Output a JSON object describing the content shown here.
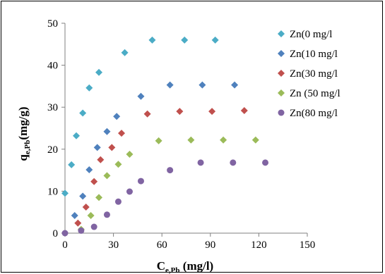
{
  "chart_data": {
    "type": "scatter",
    "title": "",
    "xlabel": "C",
    "xlabel_sub": "e,Pb",
    "xlabel_unit": " (mg/l)",
    "ylabel": "q",
    "ylabel_sub": "e,Pb",
    "ylabel_unit": "(mg/g)",
    "xlim": [
      0,
      150
    ],
    "ylim": [
      0,
      50
    ],
    "xticks": [
      0,
      30,
      60,
      90,
      120,
      150
    ],
    "yticks": [
      0,
      10,
      20,
      30,
      40,
      50
    ],
    "grid": false,
    "legend_position": "right",
    "series": [
      {
        "name": "Zn(0 mg/l",
        "color": "#4BACC6",
        "marker": "diamond",
        "points": [
          [
            0,
            9.5
          ],
          [
            4,
            16.3
          ],
          [
            7,
            23.2
          ],
          [
            11,
            28.6
          ],
          [
            15,
            34.6
          ],
          [
            21,
            38.3
          ],
          [
            37,
            43.0
          ],
          [
            54,
            46.0
          ],
          [
            74,
            46.0
          ],
          [
            93,
            46.0
          ]
        ]
      },
      {
        "name": "Zn(10 mg/l",
        "color": "#4F81BD",
        "marker": "diamond",
        "points": [
          [
            6,
            4.2
          ],
          [
            11,
            8.8
          ],
          [
            15,
            15.1
          ],
          [
            20,
            20.4
          ],
          [
            26,
            24.2
          ],
          [
            32,
            27.8
          ],
          [
            47,
            32.6
          ],
          [
            65,
            35.3
          ],
          [
            85,
            35.3
          ],
          [
            105,
            35.3
          ]
        ]
      },
      {
        "name": "Zn(30 mg/l",
        "color": "#C0504D",
        "marker": "diamond",
        "points": [
          [
            8,
            2.4
          ],
          [
            13,
            6.2
          ],
          [
            18,
            12.3
          ],
          [
            22,
            17.5
          ],
          [
            29,
            20.4
          ],
          [
            35,
            23.8
          ],
          [
            51,
            28.4
          ],
          [
            71,
            29.0
          ],
          [
            91,
            29.0
          ],
          [
            111,
            29.2
          ]
        ]
      },
      {
        "name": "Zn (50 mg/l",
        "color": "#9BBB59",
        "marker": "diamond",
        "points": [
          [
            10,
            0.9
          ],
          [
            16,
            4.2
          ],
          [
            21,
            8.5
          ],
          [
            26,
            13.7
          ],
          [
            33,
            16.4
          ],
          [
            40,
            18.8
          ],
          [
            58,
            22.0
          ],
          [
            78,
            22.2
          ],
          [
            98,
            22.2
          ],
          [
            118,
            22.2
          ]
        ]
      },
      {
        "name": "Zn(80 mg/l",
        "color": "#8064A2",
        "marker": "circle",
        "points": [
          [
            0,
            0
          ],
          [
            10,
            0.6
          ],
          [
            18,
            1.5
          ],
          [
            26,
            4.4
          ],
          [
            33,
            7.5
          ],
          [
            40,
            9.9
          ],
          [
            47,
            12.4
          ],
          [
            65,
            15.0
          ],
          [
            84,
            16.8
          ],
          [
            104,
            16.8
          ],
          [
            124,
            16.8
          ]
        ]
      }
    ]
  }
}
